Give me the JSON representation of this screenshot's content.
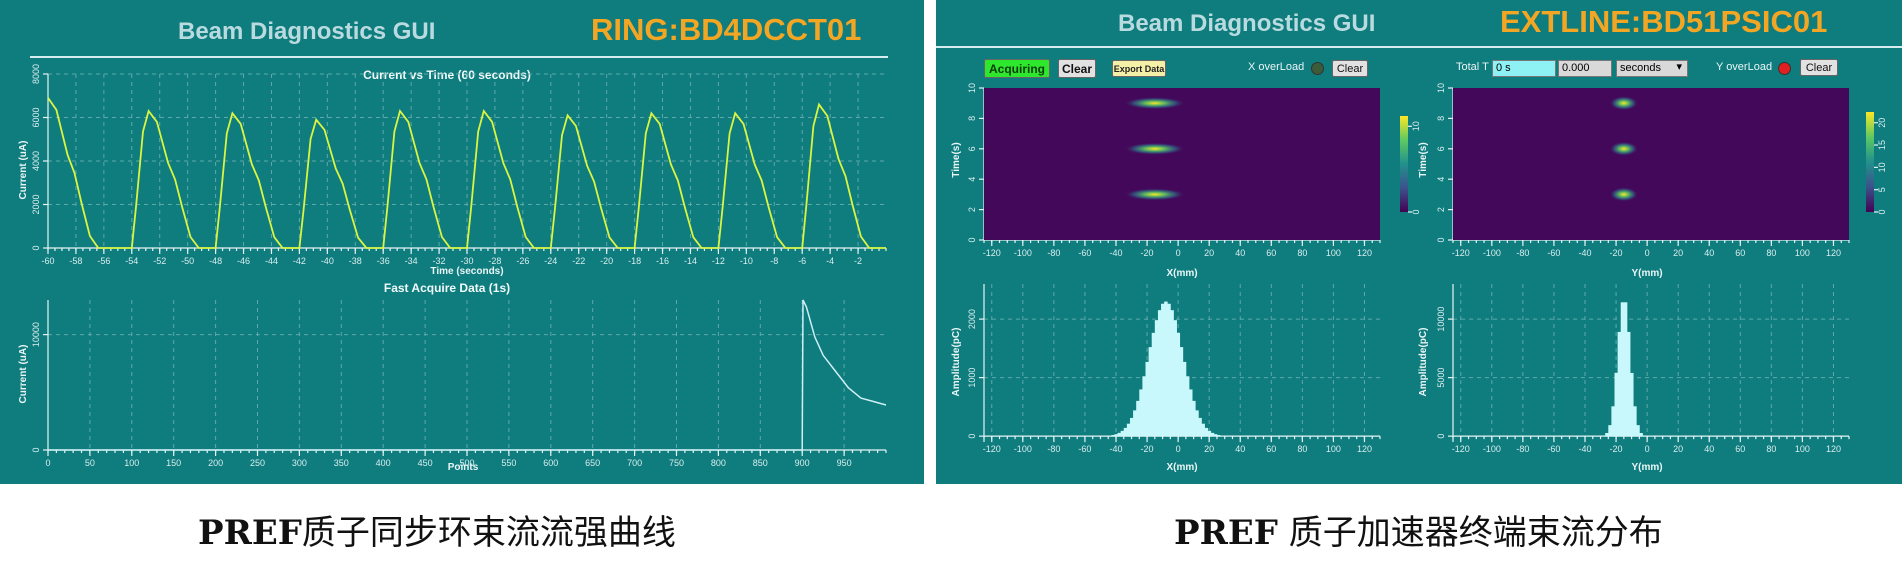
{
  "left": {
    "gui_title": "Beam Diagnostics GUI",
    "device": "RING:BD4DCCT01",
    "top_plot": {
      "title": "Current vs Time (60 seconds)",
      "ylabel": "Current (uA)",
      "xlabel": "Time (seconds)"
    },
    "bottom_plot": {
      "title": "Fast Acquire Data (1s)",
      "ylabel": "Current (uA)",
      "xlabel": "Points"
    }
  },
  "right": {
    "gui_title": "Beam Diagnostics GUI",
    "device": "EXTLINE:BD51PSIC01",
    "controls": {
      "acquiring_label": "Acquiring",
      "clear_label": "Clear",
      "export_label": "Export Data",
      "x_overload_label": "X overLoad",
      "x_clear_label": "Clear",
      "total_t_label": "Total T",
      "total_t_value": "0 s",
      "second_value": "0.000",
      "unit_select": "seconds",
      "y_overload_label": "Y overLoad",
      "y_clear_label": "Clear",
      "x_overload_color": "#3b5b3b",
      "y_overload_color": "#e02020",
      "acquiring_color": "#2ee82e"
    },
    "x_heatmap": {
      "ylabel": "Time(s)",
      "xlabel": "X(mm)"
    },
    "y_heatmap": {
      "ylabel": "Time(s)",
      "xlabel": "Y(mm)"
    },
    "x_hist": {
      "ylabel": "Amplitude(pC)",
      "xlabel": "X(mm)"
    },
    "y_hist": {
      "ylabel": "Amplitude(pC)",
      "xlabel": "Y(mm)"
    }
  },
  "captions": {
    "left_bold": "PREF",
    "left_rest": "质子同步环束流流强曲线",
    "right_bold": "PREF",
    "right_rest": " 质子加速器终端束流分布"
  },
  "chart_data": [
    {
      "type": "line",
      "title": "Current vs Time (60 seconds)",
      "xlabel": "Time (seconds)",
      "ylabel": "Current (uA)",
      "xlim": [
        -60,
        0
      ],
      "ylim": [
        0,
        8000
      ],
      "x_ticks": [
        -60,
        -58,
        -56,
        -54,
        -52,
        -50,
        -48,
        -46,
        -44,
        -42,
        -40,
        -38,
        -36,
        -34,
        -32,
        -30,
        -28,
        -26,
        -24,
        -22,
        -20,
        -18,
        -16,
        -14,
        -12,
        -10,
        -8,
        -6,
        -4,
        -2
      ],
      "y_ticks": [
        0,
        2000,
        4000,
        6000,
        8000
      ],
      "pulse_starts": [
        -60,
        -54,
        -48,
        -42,
        -36,
        -30,
        -24,
        -18,
        -12,
        -6
      ],
      "pulse_peak_offsets": [
        0,
        1.2,
        1.2,
        1.2,
        1.2,
        1.2,
        1.2,
        1.2,
        1.2,
        1.2
      ],
      "pulse_peaks": [
        6900,
        6300,
        6200,
        5900,
        6300,
        6300,
        6100,
        6200,
        6200,
        6600
      ],
      "series_color": "#d9f542",
      "grid": true
    },
    {
      "type": "line",
      "title": "Fast Acquire Data (1s)",
      "xlabel": "Points",
      "ylabel": "Current (uA)",
      "xlim": [
        0,
        1000
      ],
      "ylim": [
        0,
        13000
      ],
      "x_ticks": [
        0,
        50,
        100,
        150,
        200,
        250,
        300,
        350,
        400,
        450,
        500,
        550,
        600,
        650,
        700,
        750,
        800,
        850,
        900,
        950
      ],
      "y_ticks": [
        0,
        10000
      ],
      "x": [
        0,
        900,
        901,
        905,
        915,
        925,
        940,
        955,
        970,
        985,
        1000
      ],
      "values": [
        0,
        0,
        13000,
        12400,
        9800,
        8200,
        6800,
        5400,
        4500,
        4200,
        3900
      ],
      "series_color": "#cdf0f5",
      "grid": true
    },
    {
      "type": "heatmap",
      "xlabel": "X(mm)",
      "ylabel": "Time(s)",
      "xlim": [
        -125,
        130
      ],
      "ylim": [
        0,
        10
      ],
      "x_ticks": [
        -120,
        -100,
        -80,
        -60,
        -40,
        -20,
        0,
        20,
        40,
        60,
        80,
        100,
        120
      ],
      "y_ticks": [
        0,
        2,
        4,
        6,
        8,
        10
      ],
      "colorbar_ticks": [
        0,
        10
      ],
      "blobs_time": [
        9.0,
        6.0,
        3.0
      ],
      "blob_center_x": -15
    },
    {
      "type": "heatmap",
      "xlabel": "Y(mm)",
      "ylabel": "Time(s)",
      "xlim": [
        -125,
        130
      ],
      "ylim": [
        0,
        10
      ],
      "x_ticks": [
        -120,
        -100,
        -80,
        -60,
        -40,
        -20,
        0,
        20,
        40,
        60,
        80,
        100,
        120
      ],
      "y_ticks": [
        0,
        2,
        4,
        6,
        8,
        10
      ],
      "colorbar_ticks": [
        0,
        5,
        10,
        15,
        20
      ],
      "blobs_time": [
        9.0,
        6.0,
        3.0
      ],
      "blob_center_x": -15
    },
    {
      "type": "bar",
      "xlabel": "X(mm)",
      "ylabel": "Amplitude(pC)",
      "xlim": [
        -125,
        130
      ],
      "ylim": [
        -100,
        2600
      ],
      "x_ticks": [
        -120,
        -100,
        -80,
        -60,
        -40,
        -20,
        0,
        20,
        40,
        60,
        80,
        100,
        120
      ],
      "y_ticks": [
        0,
        1000,
        2000
      ],
      "peak_center": -8,
      "peak_value": 2300,
      "peak_sigma": 11
    },
    {
      "type": "bar",
      "xlabel": "Y(mm)",
      "ylabel": "Amplitude(pC)",
      "xlim": [
        -125,
        130
      ],
      "ylim": [
        -500,
        13000
      ],
      "x_ticks": [
        -120,
        -100,
        -80,
        -60,
        -40,
        -20,
        0,
        20,
        40,
        60,
        80,
        100,
        120
      ],
      "y_ticks": [
        0,
        5000,
        10000
      ],
      "peak_center": -15,
      "peak_value": 11800,
      "peak_sigma": 4
    }
  ]
}
